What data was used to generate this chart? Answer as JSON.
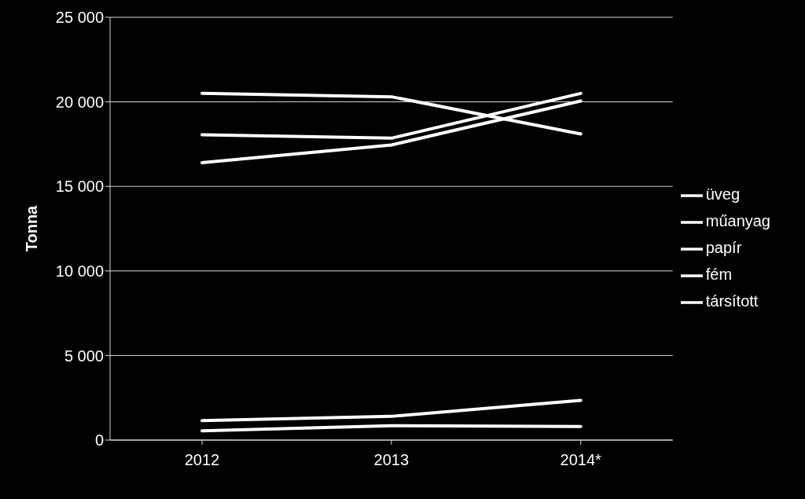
{
  "chart_data": {
    "type": "line",
    "ylabel": "Tonna",
    "categories": [
      "2012",
      "2013",
      "2014*"
    ],
    "series": [
      {
        "name": "üveg",
        "color": "#ffffff",
        "values": [
          20500,
          20300,
          18100
        ]
      },
      {
        "name": "műanyag",
        "color": "#ffffff",
        "values": [
          18050,
          17850,
          20500
        ]
      },
      {
        "name": "papír",
        "color": "#ffffff",
        "values": [
          16400,
          17450,
          20050
        ]
      },
      {
        "name": "fém",
        "color": "#ffffff",
        "values": [
          1150,
          1400,
          2350
        ]
      },
      {
        "name": "társított",
        "color": "#ffffff",
        "values": [
          550,
          850,
          800
        ]
      }
    ],
    "ylim": [
      0,
      25000
    ],
    "yticks": [
      {
        "value": 0,
        "label": "0"
      },
      {
        "value": 5000,
        "label": "5 000"
      },
      {
        "value": 10000,
        "label": "10 000"
      },
      {
        "value": 15000,
        "label": "15 000"
      },
      {
        "value": 20000,
        "label": "20 000"
      },
      {
        "value": 25000,
        "label": "25 000"
      }
    ],
    "grid": "y",
    "legend": "right",
    "marker": "none",
    "line_style": "solid"
  }
}
